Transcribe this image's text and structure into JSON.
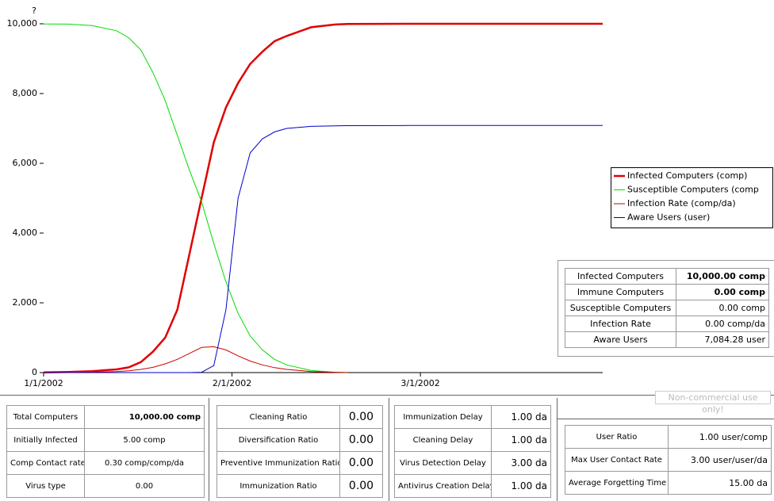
{
  "chart_data": {
    "type": "line",
    "ylabel": "?",
    "x": [
      0,
      4,
      8,
      12,
      14,
      16,
      18,
      20,
      22,
      24,
      26,
      28,
      30,
      32,
      34,
      36,
      38,
      40,
      44,
      48,
      50,
      60,
      70,
      80,
      92
    ],
    "xlim": [
      0,
      92
    ],
    "xticks": [
      {
        "value": 0,
        "label": "1/1/2002"
      },
      {
        "value": 31,
        "label": "2/1/2002"
      },
      {
        "value": 62,
        "label": "3/1/2002"
      }
    ],
    "ylim": [
      0,
      10000
    ],
    "yticks": [
      0,
      {
        "value": 2000,
        "label": "2,000"
      },
      {
        "value": 4000,
        "label": "4,000"
      },
      {
        "value": 6000,
        "label": "6,000"
      },
      {
        "value": 8000,
        "label": "8,000"
      },
      {
        "value": 10000,
        "label": "10,000"
      }
    ],
    "legend": "right",
    "series": [
      {
        "name": "Infected Computers (comp)",
        "color": "#e00000",
        "width": 2.5,
        "values": [
          5,
          15,
          40,
          90,
          150,
          300,
          600,
          1000,
          1800,
          3400,
          5000,
          6600,
          7600,
          8300,
          8850,
          9200,
          9500,
          9650,
          9900,
          9980,
          9995,
          10000,
          10000,
          10000,
          10000
        ]
      },
      {
        "name": "Susceptible Computers (comp",
        "color": "#00dd00",
        "width": 1,
        "values": [
          9995,
          9990,
          9950,
          9800,
          9600,
          9250,
          8600,
          7800,
          6800,
          5800,
          4900,
          3700,
          2600,
          1700,
          1050,
          650,
          380,
          220,
          60,
          10,
          0,
          null,
          null,
          null,
          null
        ]
      },
      {
        "name": "Infection Rate (comp/da)",
        "color": "#cc0000",
        "width": 1,
        "values": [
          0,
          2,
          8,
          30,
          50,
          90,
          150,
          250,
          380,
          550,
          720,
          740,
          650,
          480,
          330,
          220,
          140,
          90,
          30,
          8,
          2,
          null,
          null,
          null,
          null
        ]
      },
      {
        "name": "Aware Users (user)",
        "color": "#0000cc",
        "width": 1,
        "values": [
          0,
          0,
          0,
          0,
          0,
          0,
          0,
          0,
          0,
          0,
          10,
          200,
          1800,
          5000,
          6300,
          6700,
          6900,
          7000,
          7060,
          7075,
          7080,
          7084,
          7084,
          7084,
          7084
        ]
      }
    ]
  },
  "status_table": {
    "rows": [
      [
        "Infected Computers",
        "10,000.00 comp"
      ],
      [
        "Immune Computers",
        "0.00 comp"
      ],
      [
        "Susceptible Computers",
        "0.00 comp"
      ],
      [
        "Infection Rate",
        "0.00 comp/da"
      ],
      [
        "Aware Users",
        "7,084.28 user"
      ]
    ]
  },
  "parameter_panels": [
    {
      "rows": [
        [
          "Total Computers",
          "10,000.00 comp"
        ],
        [
          "Initially Infected",
          "5.00 comp"
        ],
        [
          "Comp Contact rate",
          "0.30 comp/comp/da"
        ],
        [
          "Virus type",
          "0.00"
        ]
      ]
    },
    {
      "rows": [
        [
          "Cleaning Ratio",
          "0.00"
        ],
        [
          "Diversification Ratio",
          "0.00"
        ],
        [
          "Preventive Immunization Ratio",
          "0.00"
        ],
        [
          "Immunization Ratio",
          "0.00"
        ]
      ]
    },
    {
      "rows": [
        [
          "Immunization Delay",
          "1.00 da"
        ],
        [
          "Cleaning Delay",
          "1.00 da"
        ],
        [
          "Virus Detection Delay",
          "3.00 da"
        ],
        [
          "Antivirus Creation Delay",
          "1.00 da"
        ]
      ]
    },
    {
      "rows": [
        [
          "User Ratio",
          "1.00 user/comp"
        ],
        [
          "Max User Contact Rate",
          "3.00 user/user/da"
        ],
        [
          "Average Forgetting Time",
          "15.00 da"
        ]
      ]
    }
  ],
  "watermark": "Non-commercial use only!"
}
